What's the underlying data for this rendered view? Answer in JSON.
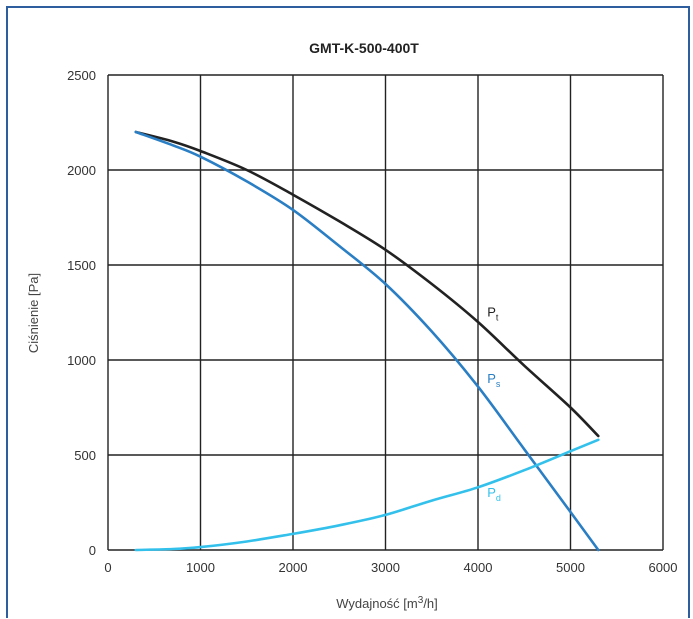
{
  "chart_data": {
    "type": "line",
    "title": "GMT-K-500-400T",
    "xlabel": "Wydajność [m",
    "xlabel_sup": "3",
    "xlabel_tail": "/h]",
    "ylabel": "Ciśnienie [Pa]",
    "xlim": [
      0,
      6000
    ],
    "ylim": [
      0,
      2500
    ],
    "x_ticks": [
      0,
      1000,
      2000,
      3000,
      4000,
      5000,
      6000
    ],
    "y_ticks": [
      0,
      500,
      1000,
      1500,
      2000,
      2500
    ],
    "grid": true,
    "series": [
      {
        "name": "P",
        "subscript": "t",
        "color": "#222222",
        "x": [
          300,
          700,
          1000,
          1500,
          2000,
          2500,
          3000,
          3500,
          4000,
          4500,
          5000,
          5300
        ],
        "y": [
          2200,
          2150,
          2100,
          2000,
          1870,
          1730,
          1580,
          1400,
          1200,
          970,
          750,
          600
        ]
      },
      {
        "name": "P",
        "subscript": "s",
        "color": "#2a7ec4",
        "x": [
          300,
          700,
          1000,
          1500,
          2000,
          2500,
          3000,
          3500,
          4000,
          4500,
          5000,
          5300
        ],
        "y": [
          2200,
          2130,
          2070,
          1940,
          1790,
          1600,
          1400,
          1150,
          860,
          530,
          200,
          0
        ]
      },
      {
        "name": "P",
        "subscript": "d",
        "color": "#33c1ec",
        "x": [
          300,
          700,
          1000,
          1500,
          2000,
          2500,
          3000,
          3500,
          4000,
          4500,
          5000,
          5300
        ],
        "y": [
          0,
          5,
          15,
          45,
          85,
          130,
          185,
          260,
          330,
          420,
          520,
          580
        ]
      }
    ]
  }
}
